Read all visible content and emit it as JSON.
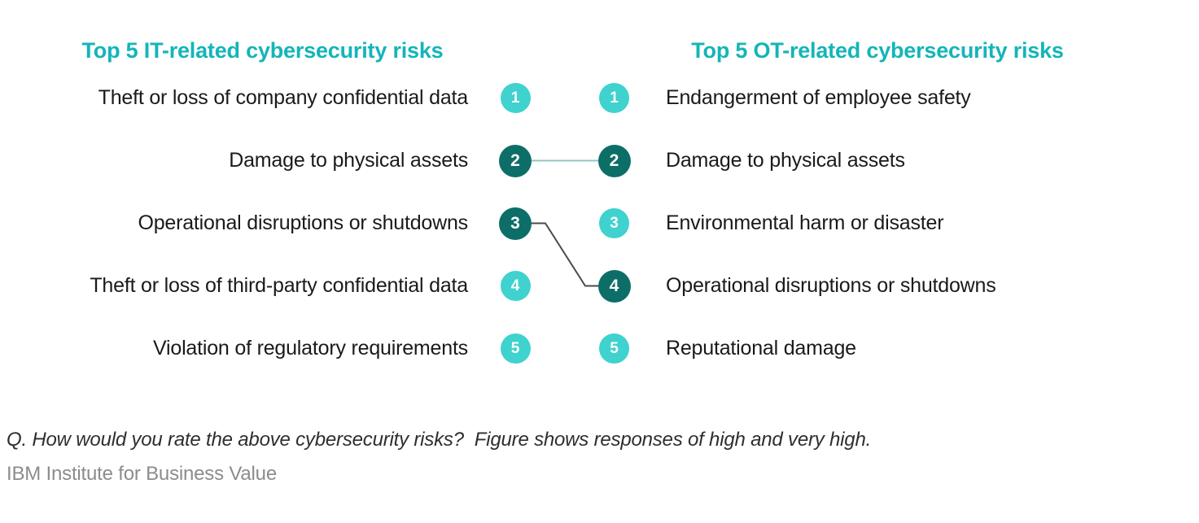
{
  "colors": {
    "background": "#ffffff",
    "title_teal": "#14b5b8",
    "badge_light": "#3fd2ce",
    "badge_dark": "#0d6e68",
    "connector_teal": "#94c5bf",
    "connector_dark": "#4a4a4a",
    "label_text": "#1a1a1a",
    "footnote_text": "#2e2e2e",
    "source_text": "#8c8c8c"
  },
  "left_column": {
    "title": "Top 5 IT-related cybersecurity risks",
    "items": [
      {
        "rank": "1",
        "label": "Theft or loss of company confidential data",
        "tone": "light"
      },
      {
        "rank": "2",
        "label": "Damage to physical assets",
        "tone": "dark"
      },
      {
        "rank": "3",
        "label": "Operational disruptions or shutdowns",
        "tone": "dark"
      },
      {
        "rank": "4",
        "label": "Theft or loss of third-party confidential data",
        "tone": "light"
      },
      {
        "rank": "5",
        "label": "Violation of regulatory requirements",
        "tone": "light"
      }
    ]
  },
  "right_column": {
    "title": "Top 5 OT-related cybersecurity risks",
    "items": [
      {
        "rank": "1",
        "label": "Endangerment of employee safety",
        "tone": "light"
      },
      {
        "rank": "2",
        "label": "Damage to physical assets",
        "tone": "dark"
      },
      {
        "rank": "3",
        "label": "Environmental harm or disaster",
        "tone": "light"
      },
      {
        "rank": "4",
        "label": "Operational disruptions or shutdowns",
        "tone": "dark"
      },
      {
        "rank": "5",
        "label": "Reputational damage",
        "tone": "light"
      }
    ]
  },
  "connections": [
    {
      "left_rank": 2,
      "right_rank": 2,
      "style": "teal"
    },
    {
      "left_rank": 3,
      "right_rank": 4,
      "style": "dark"
    }
  ],
  "footnote": "Q. How would you rate the above cybersecurity risks?  Figure shows responses of high and very high.",
  "source": "IBM Institute for Business Value",
  "chart_data": {
    "type": "table",
    "title": "",
    "columns": [
      "Top 5 IT-related cybersecurity risks",
      "Top 5 OT-related cybersecurity risks"
    ],
    "it_ranking": [
      "Theft or loss of company confidential data",
      "Damage to physical assets",
      "Operational disruptions or shutdowns",
      "Theft or loss of third-party confidential data",
      "Violation of regulatory requirements"
    ],
    "ot_ranking": [
      "Endangerment of employee safety",
      "Damage to physical assets",
      "Environmental harm or disaster",
      "Operational disruptions or shutdowns",
      "Reputational damage"
    ],
    "emphasized_it_ranks": [
      2,
      3
    ],
    "emphasized_ot_ranks": [
      2,
      4
    ],
    "links": [
      {
        "it_rank": 2,
        "ot_rank": 2,
        "shared_risk": "Damage to physical assets"
      },
      {
        "it_rank": 3,
        "ot_rank": 4,
        "shared_risk": "Operational disruptions or shutdowns"
      }
    ],
    "footnote": "Q. How would you rate the above cybersecurity risks?  Figure shows responses of high and very high.",
    "source": "IBM Institute for Business Value"
  }
}
